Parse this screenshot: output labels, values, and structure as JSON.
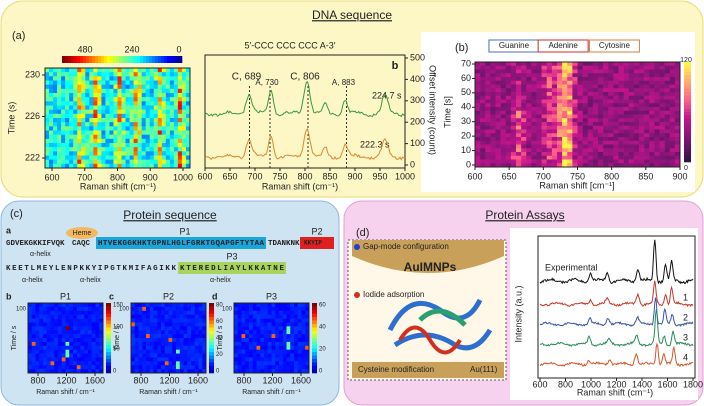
{
  "dna": {
    "title": "DNA sequence",
    "label": "(a)",
    "heatmap": {
      "colorbar_ticks": [
        480,
        240,
        0
      ],
      "yticks": [
        230,
        226,
        222
      ],
      "ylabel": "Time (s)",
      "xticks": [
        600,
        700,
        800,
        900,
        1000
      ],
      "xlabel": "Raman shift (cm⁻¹)"
    },
    "spectra": {
      "title": "5′-CCC CCC CCC A-3′",
      "panel": "b",
      "peaks": [
        "C, 689",
        "A, 730",
        "C, 806",
        "A, 883"
      ],
      "times": [
        "224.7 s",
        "222.3 s"
      ],
      "yticks": [
        0,
        100,
        200,
        300,
        400,
        500
      ],
      "ylabel": "Offset intensity (count)",
      "xticks": [
        600,
        650,
        700,
        750,
        800,
        850,
        900,
        950,
        1000
      ],
      "xlabel": "Raman shift (cm⁻¹)"
    },
    "panel_b": {
      "label": "(b)",
      "bases": [
        "Guanine",
        "Adenine",
        "Cytosine"
      ],
      "yticks": [
        0,
        10,
        20,
        30,
        40,
        50,
        60,
        70
      ],
      "ylabel": "Time [s]",
      "xticks": [
        600,
        650,
        700,
        750,
        800,
        850,
        900
      ],
      "xlabel": "Raman shift [cm⁻¹]",
      "colorbar_ticks": [
        120,
        0
      ]
    }
  },
  "protein": {
    "title": "Protein sequence",
    "label": "(c)",
    "sub": "a",
    "heme": "Heme",
    "seq1_a": "GDVEKGKKIFVQK",
    "seq1_b": "CAQC",
    "seq1_c": "HTVEKGGKHKTGPNLHGLFGRKTGQAPGFTYTAA",
    "seq1_d": "TDANKNK",
    "seq1_e": "KKYIP",
    "seq2_a": "KEETLMEYLENPKKYIPGTKMIFAGIKK",
    "seq2_b": "KTEREDLIAYLKKATNE",
    "peptides": [
      "P1",
      "P2",
      "P3"
    ],
    "helix": "α-helix",
    "maps": [
      {
        "label": "b",
        "title": "P1",
        "colorbar_ticks": [
          150,
          100,
          50,
          0
        ],
        "xticks": [
          800,
          1200,
          1600
        ]
      },
      {
        "label": "c",
        "title": "P2",
        "colorbar_ticks": [
          80,
          60,
          40,
          20,
          0
        ],
        "xticks": [
          800,
          1200,
          1600
        ]
      },
      {
        "label": "d",
        "title": "P3",
        "colorbar_ticks": [
          60,
          40,
          20,
          0
        ],
        "xticks": [
          800,
          1200,
          1600
        ]
      }
    ],
    "ylabel": "Time / s",
    "ytick": 100,
    "xlabel": "Raman shift / cm⁻¹"
  },
  "assays": {
    "title": "Protein Assays",
    "label": "(d)",
    "gap": "Gap-mode configuration",
    "np": "AuIMNPs",
    "iodide": "Iodide adsorption",
    "cys": "Cysteine modification",
    "au": "Au(111)",
    "experimental": "Experimental",
    "traces": [
      "1",
      "2",
      "3",
      "4"
    ],
    "ylabel": "Intensity (a.u.)",
    "xticks": [
      600,
      800,
      1000,
      1200,
      1400,
      1600,
      1800
    ],
    "xlabel": "Raman shift (cm⁻¹)"
  }
}
